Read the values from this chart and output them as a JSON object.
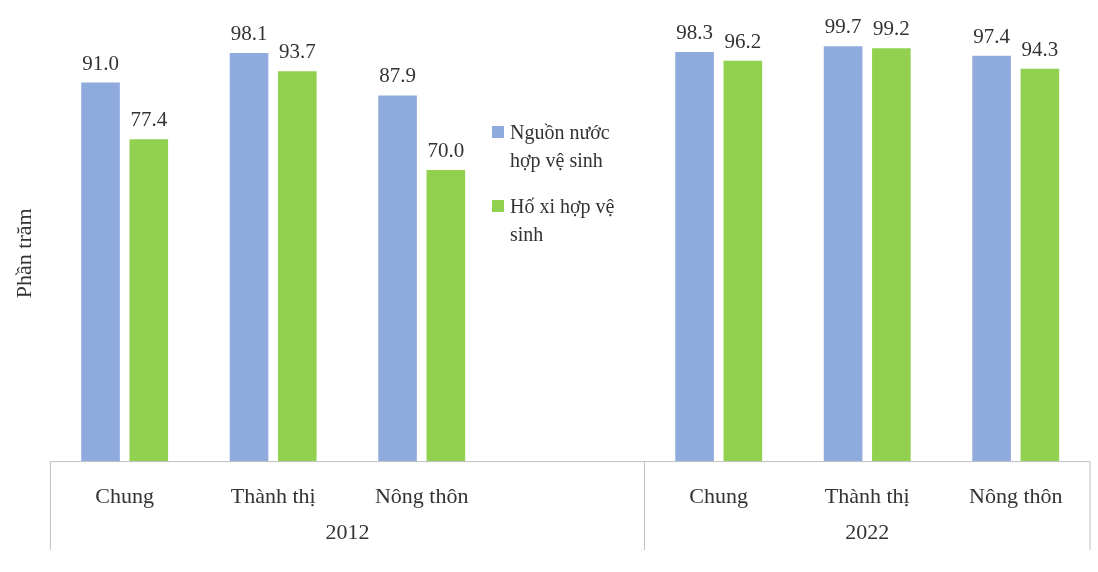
{
  "chart_data": {
    "type": "bar",
    "ylabel": "Phần trăm",
    "categories": [
      "Chung",
      "Thành thị",
      "Nông thôn",
      null,
      "Chung",
      "Thành thị",
      "Nông thôn"
    ],
    "series": [
      {
        "name": "Nguồn nước hợp vệ sinh",
        "color": "#8faadc",
        "values": [
          91.0,
          98.1,
          87.9,
          null,
          98.3,
          99.7,
          97.4
        ],
        "value_labels": [
          "91.0",
          "98.1",
          "87.9",
          null,
          "98.3",
          "99.7",
          "97.4"
        ]
      },
      {
        "name": "Hố xi hợp vệ sinh",
        "color": "#92d050",
        "values": [
          77.4,
          93.7,
          70.0,
          null,
          96.2,
          99.2,
          94.3
        ],
        "value_labels": [
          "77.4",
          "93.7",
          "70.0",
          null,
          "96.2",
          "99.2",
          "94.3"
        ]
      }
    ],
    "annotations": [
      "2012",
      "2022"
    ],
    "grid": false,
    "legend": "center"
  }
}
